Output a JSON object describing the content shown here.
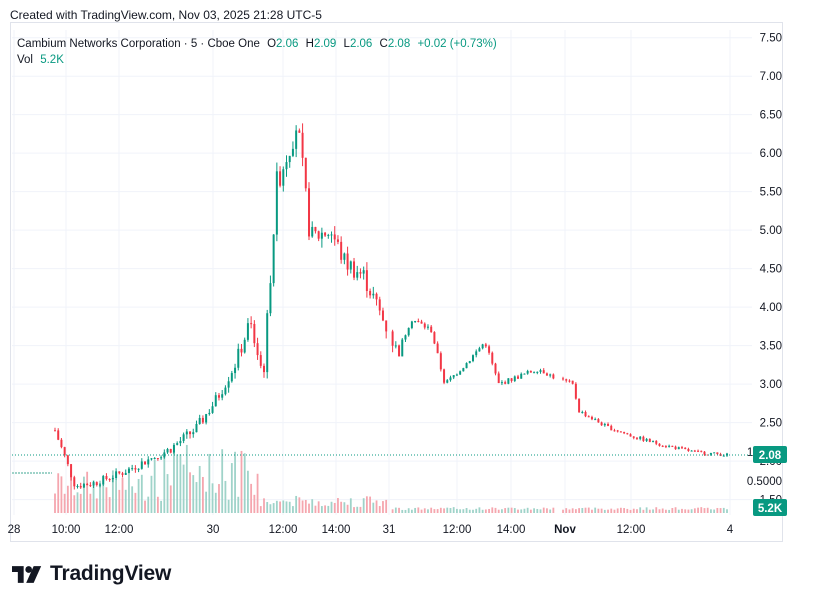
{
  "header": {
    "created_text": "Created with TradingView.com, Nov 03, 2025 21:28 UTC-5"
  },
  "legend": {
    "symbol": "Cambium Networks Corporation · 5 · Cboe One",
    "o_label": "O",
    "o_value": "2.06",
    "h_label": "H",
    "h_value": "2.09",
    "l_label": "L",
    "l_value": "2.06",
    "c_label": "C",
    "c_value": "2.08",
    "change": "+0.02 (+0.73%)",
    "vol_label": "Vol",
    "vol_value": "5.2K"
  },
  "brand": {
    "logo_icon": "tradingview-logo-icon",
    "name": "TradingView"
  },
  "colors": {
    "up": "#089981",
    "down": "#f23645",
    "up_volume": "#9fd3c9",
    "down_volume": "#f5a6ae",
    "grid": "#f0f3fa",
    "text": "#131722"
  },
  "chart_data": {
    "type": "candlestick",
    "interval": "5",
    "price_axis": {
      "ticks": [
        "7.50",
        "7.00",
        "6.50",
        "6.00",
        "5.50",
        "5.00",
        "4.50",
        "4.00",
        "3.50",
        "3.00",
        "2.50",
        "2.00",
        "1.50"
      ],
      "range": [
        1.3,
        7.6
      ]
    },
    "volume_axis": {
      "ticks": [
        "1.0000",
        "0.5000"
      ]
    },
    "last_price": "2.08",
    "last_volume": "5.2K",
    "time_ticks": [
      "28",
      "10:00",
      "12:00",
      "30",
      "12:00",
      "14:00",
      "31",
      "12:00",
      "14:00",
      "Nov",
      "12:00",
      "4"
    ],
    "price_path": [
      {
        "t": 0.0,
        "p": 2.4
      },
      {
        "t": 0.03,
        "p": 1.68
      },
      {
        "t": 0.06,
        "p": 1.72
      },
      {
        "t": 0.1,
        "p": 1.85
      },
      {
        "t": 0.13,
        "p": 1.98
      },
      {
        "t": 0.17,
        "p": 2.15
      },
      {
        "t": 0.21,
        "p": 2.42
      },
      {
        "t": 0.24,
        "p": 2.8
      },
      {
        "t": 0.27,
        "p": 3.3
      },
      {
        "t": 0.29,
        "p": 3.8
      },
      {
        "t": 0.31,
        "p": 3.1
      },
      {
        "t": 0.33,
        "p": 5.6
      },
      {
        "t": 0.36,
        "p": 6.4
      },
      {
        "t": 0.38,
        "p": 4.9
      },
      {
        "t": 0.41,
        "p": 5.0
      },
      {
        "t": 0.43,
        "p": 4.6
      },
      {
        "t": 0.46,
        "p": 4.4
      },
      {
        "t": 0.49,
        "p": 3.8
      },
      {
        "t": 0.51,
        "p": 3.4
      },
      {
        "t": 0.53,
        "p": 3.85
      },
      {
        "t": 0.56,
        "p": 3.7
      },
      {
        "t": 0.58,
        "p": 3.0
      },
      {
        "t": 0.61,
        "p": 3.25
      },
      {
        "t": 0.64,
        "p": 3.55
      },
      {
        "t": 0.66,
        "p": 3.0
      },
      {
        "t": 0.69,
        "p": 3.1
      },
      {
        "t": 0.72,
        "p": 3.2
      },
      {
        "t": 0.74,
        "p": 3.1
      },
      {
        "t": 0.77,
        "p": 3.0
      },
      {
        "t": 0.78,
        "p": 2.65
      },
      {
        "t": 0.82,
        "p": 2.45
      },
      {
        "t": 0.86,
        "p": 2.32
      },
      {
        "t": 0.9,
        "p": 2.22
      },
      {
        "t": 0.95,
        "p": 2.12
      },
      {
        "t": 1.0,
        "p": 2.08
      }
    ]
  }
}
